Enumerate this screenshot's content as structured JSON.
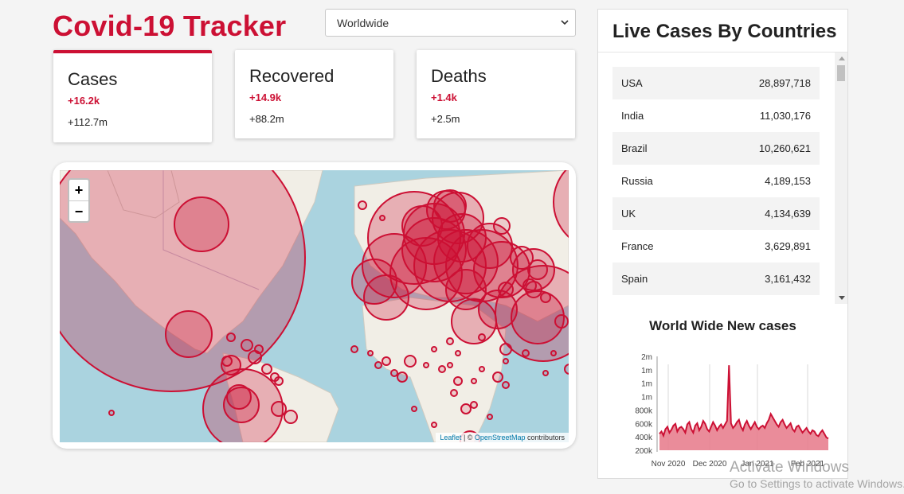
{
  "app": {
    "title": "Covid-19 Tracker"
  },
  "country_select": {
    "value": "Worldwide"
  },
  "colors": {
    "accent": "#cc1034",
    "chart_fill": "#e8808f"
  },
  "stats": [
    {
      "title": "Cases",
      "new": "+16.2k",
      "total": "+112.7m",
      "active": true
    },
    {
      "title": "Recovered",
      "new": "+14.9k",
      "total": "+88.2m",
      "active": false
    },
    {
      "title": "Deaths",
      "new": "+1.4k",
      "total": "+2.5m",
      "active": false
    }
  ],
  "map": {
    "zoom_in": "+",
    "zoom_out": "−",
    "attribution": {
      "leaflet": "Leaflet",
      "sep": " | © ",
      "osm": "OpenStreetMap",
      "tail": " contributors"
    }
  },
  "live_cases": {
    "title": "Live Cases By Countries",
    "rows": [
      {
        "country": "USA",
        "cases": "28,897,718"
      },
      {
        "country": "India",
        "cases": "11,030,176"
      },
      {
        "country": "Brazil",
        "cases": "10,260,621"
      },
      {
        "country": "Russia",
        "cases": "4,189,153"
      },
      {
        "country": "UK",
        "cases": "4,134,639"
      },
      {
        "country": "France",
        "cases": "3,629,891"
      },
      {
        "country": "Spain",
        "cases": "3,161,432"
      }
    ]
  },
  "chart_data": {
    "type": "area",
    "title": "World Wide New cases",
    "y_tick_labels": [
      "2m",
      "1m",
      "1m",
      "1m",
      "800k",
      "600k",
      "400k",
      "200k"
    ],
    "x_tick_labels": [
      "Nov 2020",
      "Dec 2020",
      "Jan 2021",
      "Feb 2021"
    ],
    "ylim": [
      200000,
      1800000
    ],
    "values": [
      480000,
      520000,
      450000,
      560000,
      600000,
      500000,
      550000,
      620000,
      650000,
      520000,
      580000,
      600000,
      560000,
      500000,
      640000,
      680000,
      560000,
      500000,
      620000,
      660000,
      540000,
      600000,
      700000,
      650000,
      560000,
      520000,
      600000,
      680000,
      620000,
      540000,
      600000,
      640000,
      580000,
      640000,
      700000,
      1650000,
      660000,
      580000,
      620000,
      680000,
      720000,
      600000,
      540000,
      640000,
      700000,
      620000,
      560000,
      620000,
      680000,
      600000,
      560000,
      600000,
      620000,
      580000,
      660000,
      720000,
      820000,
      760000,
      700000,
      640000,
      600000,
      680000,
      720000,
      640000,
      580000,
      620000,
      660000,
      560000,
      520000,
      600000,
      620000,
      560000,
      500000,
      540000,
      580000,
      520000,
      480000,
      540000,
      520000,
      460000,
      440000,
      500000,
      540000,
      480000,
      420000,
      400000
    ]
  },
  "watermark": {
    "line1": "Activate Windows",
    "line2": "Go to Settings to activate Windows."
  }
}
